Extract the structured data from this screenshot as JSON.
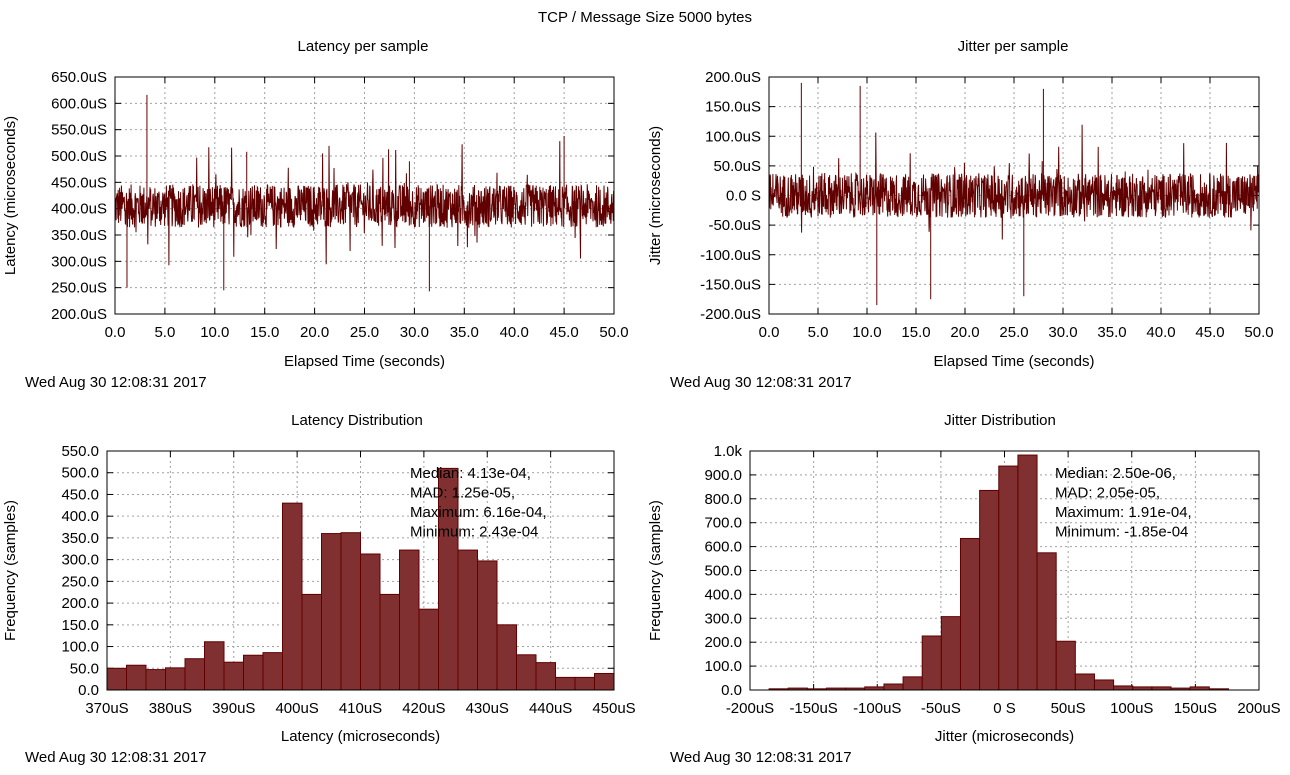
{
  "title": "TCP / Message Size 5000 bytes",
  "colors": {
    "line": "#600000",
    "bar_fill": "#803030",
    "bar_edge": "#600000",
    "grid": "#a0a0a0"
  },
  "chart_data": [
    {
      "type": "line",
      "title": "Latency per sample",
      "xlabel": "Elapsed Time (seconds)",
      "ylabel": "Latency (microseconds)",
      "xlim": [
        0,
        50
      ],
      "ylim": [
        200,
        650
      ],
      "xticks": [
        "0.0",
        "5.0",
        "10.0",
        "15.0",
        "20.0",
        "25.0",
        "30.0",
        "35.0",
        "40.0",
        "45.0",
        "50.0"
      ],
      "yticks": [
        "200.0uS",
        "250.0uS",
        "300.0uS",
        "350.0uS",
        "400.0uS",
        "450.0uS",
        "500.0uS",
        "550.0uS",
        "600.0uS",
        "650.0uS"
      ],
      "typical_range": [
        350,
        460
      ],
      "spikes": [
        [
          3.2,
          616
        ],
        [
          13.2,
          508
        ],
        [
          29.5,
          490
        ],
        [
          45.0,
          538
        ],
        [
          1.2,
          250
        ],
        [
          10.9,
          245
        ],
        [
          31.5,
          243
        ]
      ],
      "grid": true,
      "date": "Wed Aug 30 12:08:31 2017"
    },
    {
      "type": "line",
      "title": "Jitter per sample",
      "xlabel": "Elapsed Time (seconds)",
      "ylabel": "Jitter (microseconds)",
      "xlim": [
        0,
        50
      ],
      "ylim": [
        -200,
        200
      ],
      "xticks": [
        "0.0",
        "5.0",
        "10.0",
        "15.0",
        "20.0",
        "25.0",
        "30.0",
        "35.0",
        "40.0",
        "45.0",
        "50.0"
      ],
      "yticks": [
        "-200.0uS",
        "-150.0uS",
        "-100.0uS",
        "-50.0uS",
        "0.0 S",
        "50.0uS",
        "100.0uS",
        "150.0uS",
        "200.0uS"
      ],
      "typical_range": [
        -50,
        50
      ],
      "spikes": [
        [
          3.3,
          190
        ],
        [
          9.3,
          185
        ],
        [
          28.0,
          180
        ],
        [
          11.0,
          -185
        ],
        [
          16.5,
          -175
        ],
        [
          26.0,
          -170
        ]
      ],
      "grid": true,
      "date": "Wed Aug 30 12:08:31 2017"
    },
    {
      "type": "bar",
      "title": "Latency Distribution",
      "xlabel": "Latency (microseconds)",
      "ylabel": "Frequency (samples)",
      "xlim": [
        370,
        450
      ],
      "ylim": [
        0,
        550
      ],
      "xticks": [
        "370uS",
        "380uS",
        "390uS",
        "400uS",
        "410uS",
        "420uS",
        "430uS",
        "440uS",
        "450uS"
      ],
      "yticks": [
        "0.0",
        "50.0",
        "100.0",
        "150.0",
        "200.0",
        "250.0",
        "300.0",
        "350.0",
        "400.0",
        "450.0",
        "500.0",
        "550.0"
      ],
      "bin_start": 370,
      "bin_end": 450,
      "values": [
        50,
        57,
        47,
        51,
        72,
        111,
        64,
        80,
        86,
        430,
        220,
        360,
        362,
        313,
        220,
        322,
        186,
        510,
        322,
        297,
        150,
        81,
        63,
        29,
        29,
        38
      ],
      "annotation": [
        "Median: 4.13e-04,",
        "MAD: 1.25e-05,",
        "Maximum: 6.16e-04,",
        "Minimum: 2.43e-04"
      ],
      "grid": true,
      "date": "Wed Aug 30 12:08:31 2017"
    },
    {
      "type": "bar",
      "title": "Jitter Distribution",
      "xlabel": "Jitter (microseconds)",
      "ylabel": "Frequency (samples)",
      "xlim": [
        -200,
        200
      ],
      "ylim": [
        0,
        1000
      ],
      "xticks": [
        "-200uS",
        "-150uS",
        "-100uS",
        "-50uS",
        "0 S",
        "50uS",
        "100uS",
        "150uS",
        "200uS"
      ],
      "yticks": [
        "0.0",
        "100.0",
        "200.0",
        "300.0",
        "400.0",
        "500.0",
        "600.0",
        "700.0",
        "800.0",
        "900.0",
        "1.0k"
      ],
      "bin_start": -185,
      "bin_end": 176,
      "values": [
        5,
        8,
        5,
        8,
        8,
        13,
        25,
        55,
        226,
        307,
        634,
        835,
        937,
        983,
        574,
        204,
        67,
        42,
        17,
        13,
        13,
        8,
        13,
        5
      ],
      "annotation": [
        "Median: 2.50e-06,",
        "MAD: 2.05e-05,",
        "Maximum: 1.91e-04,",
        "Minimum: -1.85e-04"
      ],
      "grid": true,
      "date": "Wed Aug 30 12:08:31 2017"
    }
  ]
}
